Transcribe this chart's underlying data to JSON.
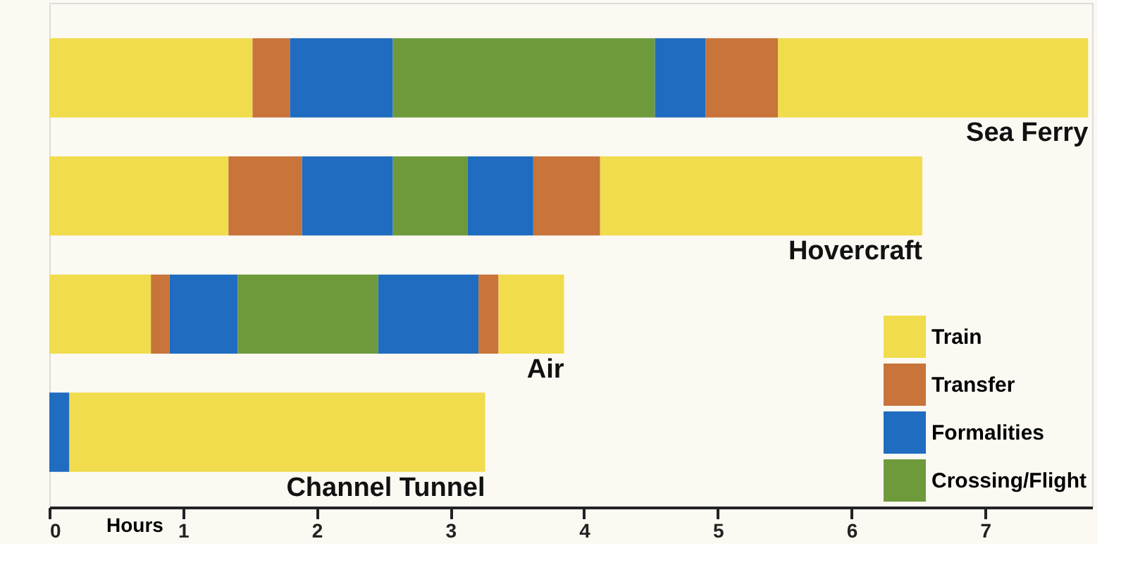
{
  "chart_data": {
    "type": "bar",
    "orientation": "horizontal",
    "stacked": true,
    "categories": [
      "Sea Ferry",
      "Hovercraft",
      "Air",
      "Channel Tunnel"
    ],
    "xlabel": "Hours",
    "xlim": [
      0,
      7.8
    ],
    "xticks": [
      0,
      1,
      2,
      3,
      4,
      5,
      6,
      7
    ],
    "tick_labels": "x",
    "grid": false,
    "legend": "bottom right",
    "series": [
      {
        "name": "Train",
        "color": "#f0dc4c",
        "values": [
          1.52,
          1.34,
          0.76,
          0
        ]
      },
      {
        "name": "Transfer",
        "color": "#c8743a",
        "values": [
          0.28,
          0.55,
          0.14,
          0
        ]
      },
      {
        "name": "Formalities",
        "color": "#1f6cc0",
        "values": [
          0.77,
          0.68,
          0.51,
          0.15
        ]
      },
      {
        "name": "Crossing/Flight",
        "color": "#6e9a3c",
        "values": [
          1.96,
          0.56,
          1.05,
          0
        ]
      },
      {
        "color": "#1f6cc0",
        "values": [
          0.38,
          0.49,
          0.75,
          0
        ]
      },
      {
        "color": "#c8743a",
        "values": [
          0.54,
          0.5,
          0.15,
          0
        ]
      },
      {
        "color": "#f0dc4c",
        "values": [
          2.32,
          2.41,
          0.49,
          3.11
        ]
      }
    ]
  }
}
